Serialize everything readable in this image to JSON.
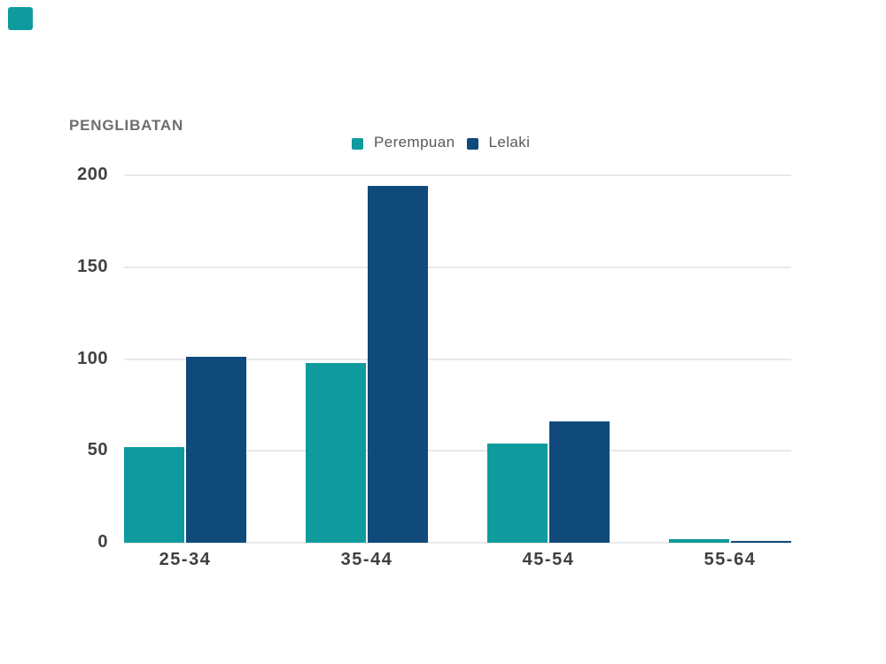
{
  "corner_mark": {
    "color": "#0f9b9d"
  },
  "colors": {
    "background": "#ffffff",
    "gridline": "#e9e9e9",
    "title_text": "#6d6e70",
    "axis_text": "#414042",
    "legend_text": "#58595b",
    "perempuan_teal": "#0f9b9d",
    "lelaki_navy": "#0f4a7b"
  },
  "chart_data": {
    "type": "bar",
    "title": "PENGLIBATAN",
    "xlabel": "",
    "ylabel": "",
    "categories": [
      "25-34",
      "35-44",
      "45-54",
      "55-64"
    ],
    "series": [
      {
        "name": "Perempuan",
        "color": "#0f9b9d",
        "values": [
          52,
          98,
          54,
          2
        ]
      },
      {
        "name": "Lelaki",
        "color": "#0f4a7b",
        "values": [
          101,
          194,
          66,
          1
        ]
      }
    ],
    "ylim": [
      0,
      200
    ],
    "yticks": [
      0,
      50,
      100,
      150,
      200
    ],
    "grid": true,
    "legend_position": "top-center"
  }
}
